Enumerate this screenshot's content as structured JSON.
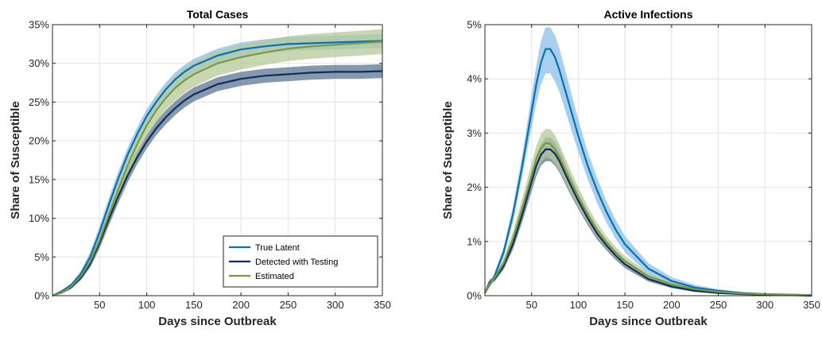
{
  "chart_data": [
    {
      "type": "line",
      "title": "Total Cases",
      "xlabel": "Days since Outbreak",
      "ylabel": "Share of Susceptible",
      "xlim": [
        0,
        350
      ],
      "ylim": [
        0,
        35
      ],
      "xticks": [
        50,
        100,
        150,
        200,
        250,
        300,
        350
      ],
      "xtick_labels": [
        "50",
        "100",
        "150",
        "200",
        "250",
        "300",
        "350"
      ],
      "yticks": [
        0,
        5,
        10,
        15,
        20,
        25,
        30,
        35
      ],
      "ytick_labels": [
        "0%",
        "5%",
        "10%",
        "15%",
        "20%",
        "25%",
        "30%",
        "35%"
      ],
      "grid": true,
      "legend_position": "bottom-right",
      "x": [
        0,
        10,
        20,
        30,
        40,
        50,
        60,
        70,
        80,
        90,
        100,
        110,
        120,
        130,
        140,
        150,
        175,
        200,
        225,
        250,
        275,
        300,
        325,
        350
      ],
      "series": [
        {
          "name": "True Latent",
          "color": "#0072BD",
          "band_color": "#8BBFE8",
          "values": [
            0,
            0.6,
            1.4,
            2.8,
            5.0,
            8.2,
            11.8,
            15.2,
            18.3,
            20.9,
            23.2,
            25.0,
            26.6,
            27.9,
            28.9,
            29.7,
            31.0,
            31.8,
            32.2,
            32.5,
            32.6,
            32.7,
            32.8,
            32.9
          ],
          "lower": [
            0,
            0.5,
            1.2,
            2.4,
            4.4,
            7.4,
            10.9,
            14.3,
            17.4,
            20.0,
            22.3,
            24.1,
            25.7,
            27.0,
            28.0,
            28.8,
            30.1,
            30.9,
            31.3,
            31.6,
            31.7,
            31.8,
            31.9,
            32.0
          ],
          "upper": [
            0,
            0.7,
            1.6,
            3.2,
            5.6,
            9.0,
            12.7,
            16.1,
            19.2,
            21.8,
            24.1,
            25.9,
            27.5,
            28.8,
            29.8,
            30.6,
            31.9,
            32.7,
            33.1,
            33.4,
            33.5,
            33.6,
            33.7,
            33.8
          ]
        },
        {
          "name": "Detected with Testing",
          "color": "#0D2E5C",
          "band_color": "#5C7593",
          "values": [
            0,
            0.4,
            1.1,
            2.3,
            4.1,
            6.8,
            9.9,
            12.9,
            15.6,
            17.9,
            19.9,
            21.6,
            23.0,
            24.2,
            25.2,
            26.0,
            27.3,
            28.0,
            28.4,
            28.6,
            28.8,
            28.9,
            28.9,
            29.0
          ],
          "lower": [
            0,
            0.3,
            0.9,
            2.0,
            3.6,
            6.1,
            9.1,
            12.0,
            14.7,
            17.0,
            19.0,
            20.7,
            22.1,
            23.3,
            24.3,
            25.1,
            26.4,
            27.1,
            27.5,
            27.7,
            27.9,
            28.0,
            28.0,
            28.1
          ],
          "upper": [
            0,
            0.5,
            1.3,
            2.6,
            4.6,
            7.5,
            10.7,
            13.8,
            16.5,
            18.8,
            20.8,
            22.5,
            23.9,
            25.1,
            26.1,
            26.9,
            28.2,
            28.9,
            29.3,
            29.5,
            29.7,
            29.8,
            29.8,
            29.9
          ]
        },
        {
          "name": "Estimated",
          "color": "#77993F",
          "band_color": "#B6C998",
          "values": [
            0,
            0.4,
            1.2,
            2.5,
            4.4,
            7.2,
            10.5,
            13.8,
            16.9,
            19.6,
            22.0,
            23.9,
            25.5,
            26.8,
            27.8,
            28.6,
            30.0,
            30.8,
            31.4,
            31.9,
            32.2,
            32.4,
            32.6,
            32.8
          ],
          "lower": [
            0,
            0.3,
            1.0,
            2.1,
            3.8,
            6.4,
            9.5,
            12.7,
            15.7,
            18.3,
            20.6,
            22.4,
            24.0,
            25.2,
            26.2,
            27.0,
            28.4,
            29.2,
            29.8,
            30.3,
            30.6,
            30.8,
            31.0,
            31.2
          ],
          "upper": [
            0,
            0.5,
            1.4,
            2.9,
            5.0,
            8.0,
            11.5,
            14.9,
            18.1,
            20.9,
            23.4,
            25.4,
            27.0,
            28.4,
            29.4,
            30.2,
            31.6,
            32.4,
            33.0,
            33.5,
            33.8,
            34.0,
            34.2,
            34.4
          ]
        }
      ]
    },
    {
      "type": "line",
      "title": "Active Infections",
      "xlabel": "Days since Outbreak",
      "ylabel": "Share of Susceptible",
      "xlim": [
        0,
        350
      ],
      "ylim": [
        0,
        5
      ],
      "xticks": [
        50,
        100,
        150,
        200,
        250,
        300,
        350
      ],
      "xtick_labels": [
        "50",
        "100",
        "150",
        "200",
        "250",
        "300",
        "350"
      ],
      "yticks": [
        0,
        1,
        2,
        3,
        4,
        5
      ],
      "ytick_labels": [
        "0%",
        "1%",
        "2%",
        "3%",
        "4%",
        "5%"
      ],
      "grid": true,
      "x": [
        0,
        5,
        10,
        20,
        30,
        40,
        50,
        55,
        60,
        65,
        70,
        75,
        80,
        90,
        100,
        110,
        120,
        130,
        140,
        150,
        175,
        200,
        225,
        250,
        275,
        300,
        325,
        350
      ],
      "series": [
        {
          "name": "True Latent",
          "color": "#0072BD",
          "band_color": "#8BBFE8",
          "values": [
            0.05,
            0.2,
            0.35,
            0.8,
            1.5,
            2.4,
            3.4,
            3.9,
            4.3,
            4.55,
            4.55,
            4.4,
            4.15,
            3.55,
            2.95,
            2.4,
            1.95,
            1.55,
            1.22,
            0.95,
            0.5,
            0.27,
            0.15,
            0.09,
            0.05,
            0.03,
            0.02,
            0.01
          ],
          "lower": [
            0.03,
            0.16,
            0.3,
            0.7,
            1.35,
            2.2,
            3.1,
            3.55,
            3.9,
            4.1,
            4.1,
            3.95,
            3.75,
            3.2,
            2.65,
            2.15,
            1.72,
            1.35,
            1.05,
            0.8,
            0.4,
            0.2,
            0.1,
            0.06,
            0.03,
            0.02,
            0.01,
            0.0
          ],
          "upper": [
            0.07,
            0.24,
            0.4,
            0.9,
            1.65,
            2.6,
            3.7,
            4.25,
            4.7,
            4.95,
            4.95,
            4.8,
            4.55,
            3.9,
            3.25,
            2.65,
            2.18,
            1.75,
            1.4,
            1.1,
            0.6,
            0.34,
            0.2,
            0.12,
            0.07,
            0.04,
            0.03,
            0.02
          ]
        },
        {
          "name": "Detected with Testing",
          "color": "#0D2E5C",
          "band_color": "#5C7593",
          "values": [
            0.05,
            0.25,
            0.3,
            0.55,
            0.95,
            1.5,
            2.1,
            2.4,
            2.6,
            2.7,
            2.7,
            2.62,
            2.48,
            2.1,
            1.75,
            1.43,
            1.15,
            0.93,
            0.74,
            0.58,
            0.31,
            0.17,
            0.09,
            0.05,
            0.03,
            0.02,
            0.01,
            0.0
          ],
          "lower": [
            0.03,
            0.2,
            0.25,
            0.48,
            0.85,
            1.36,
            1.92,
            2.2,
            2.4,
            2.48,
            2.48,
            2.4,
            2.27,
            1.92,
            1.6,
            1.3,
            1.04,
            0.84,
            0.66,
            0.51,
            0.26,
            0.14,
            0.07,
            0.04,
            0.02,
            0.01,
            0.0,
            0.0
          ],
          "upper": [
            0.07,
            0.3,
            0.35,
            0.62,
            1.05,
            1.64,
            2.28,
            2.6,
            2.8,
            2.92,
            2.92,
            2.84,
            2.69,
            2.28,
            1.9,
            1.56,
            1.26,
            1.02,
            0.82,
            0.65,
            0.36,
            0.2,
            0.11,
            0.06,
            0.04,
            0.03,
            0.02,
            0.01
          ]
        },
        {
          "name": "Estimated",
          "color": "#77993F",
          "band_color": "#B6C998",
          "values": [
            0.05,
            0.22,
            0.32,
            0.6,
            1.05,
            1.62,
            2.22,
            2.52,
            2.72,
            2.82,
            2.8,
            2.7,
            2.55,
            2.17,
            1.82,
            1.5,
            1.22,
            0.99,
            0.8,
            0.64,
            0.36,
            0.21,
            0.12,
            0.07,
            0.04,
            0.03,
            0.02,
            0.01
          ],
          "lower": [
            0.03,
            0.18,
            0.27,
            0.52,
            0.92,
            1.45,
            2.0,
            2.28,
            2.46,
            2.55,
            2.53,
            2.44,
            2.31,
            1.96,
            1.64,
            1.35,
            1.09,
            0.88,
            0.7,
            0.55,
            0.3,
            0.17,
            0.09,
            0.05,
            0.03,
            0.02,
            0.01,
            0.0
          ],
          "upper": [
            0.07,
            0.26,
            0.37,
            0.68,
            1.18,
            1.8,
            2.45,
            2.76,
            2.98,
            3.08,
            3.07,
            2.96,
            2.79,
            2.38,
            2.0,
            1.65,
            1.35,
            1.1,
            0.9,
            0.73,
            0.42,
            0.25,
            0.15,
            0.09,
            0.06,
            0.04,
            0.03,
            0.02
          ]
        }
      ]
    }
  ]
}
